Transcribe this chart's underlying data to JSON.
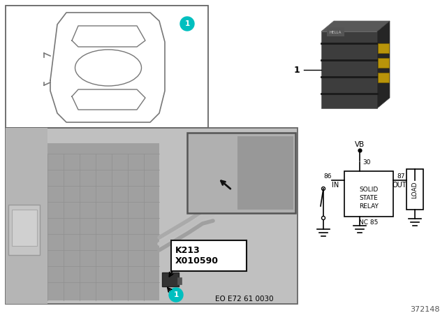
{
  "bg_color": "#ffffff",
  "teal_color": "#00BFBF",
  "dark_relay_color": "#3d3d3d",
  "relay_side_color": "#252525",
  "relay_top_color": "#585858",
  "pin_color": "#b8940a",
  "gray_photo": "#c0c0c0",
  "fuse_gray": "#a0a0a0",
  "label_1": "1",
  "k213_label": "K213",
  "x010590_label": "X010590",
  "eo_label": "EO E72 61 0030",
  "ref_number": "372148",
  "relay_text": [
    "SOLID",
    "STATE",
    "RELAY"
  ],
  "load_text": "LOAD",
  "vb_text": "VB",
  "in_text": "IN",
  "out_text": "OUT",
  "nc85_text": "NC 85",
  "pin_30": "30",
  "pin_86": "86",
  "pin_87": "87"
}
